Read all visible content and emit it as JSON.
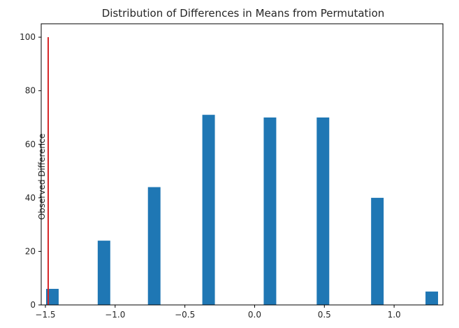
{
  "chart_data": {
    "type": "bar",
    "title": "Distribution of Differences in Means from Permutation",
    "xlabel": "",
    "ylabel": "",
    "xlim": [
      -1.53,
      1.35
    ],
    "ylim": [
      0,
      105
    ],
    "x_ticks": [
      -1.5,
      -1.0,
      -0.5,
      0.0,
      0.5,
      1.0
    ],
    "x_tick_labels": [
      "−1.5",
      "−1.0",
      "−0.5",
      "0.0",
      "0.5",
      "1.0"
    ],
    "y_ticks": [
      0,
      20,
      40,
      60,
      80,
      100
    ],
    "y_tick_labels": [
      "0",
      "20",
      "40",
      "60",
      "80",
      "100"
    ],
    "bar_width": 0.09,
    "bars": [
      {
        "x": -1.45,
        "value": 6
      },
      {
        "x": -1.08,
        "value": 24
      },
      {
        "x": -0.72,
        "value": 44
      },
      {
        "x": -0.33,
        "value": 71
      },
      {
        "x": 0.11,
        "value": 70
      },
      {
        "x": 0.49,
        "value": 70
      },
      {
        "x": 0.88,
        "value": 40
      },
      {
        "x": 1.27,
        "value": 5
      }
    ],
    "bar_color": "#1f77b4",
    "observed_line": {
      "x": -1.48,
      "y_from": 0,
      "y_to": 100,
      "label": "Observed Difference",
      "color": "#d62728"
    },
    "grid": false,
    "legend": "none"
  }
}
